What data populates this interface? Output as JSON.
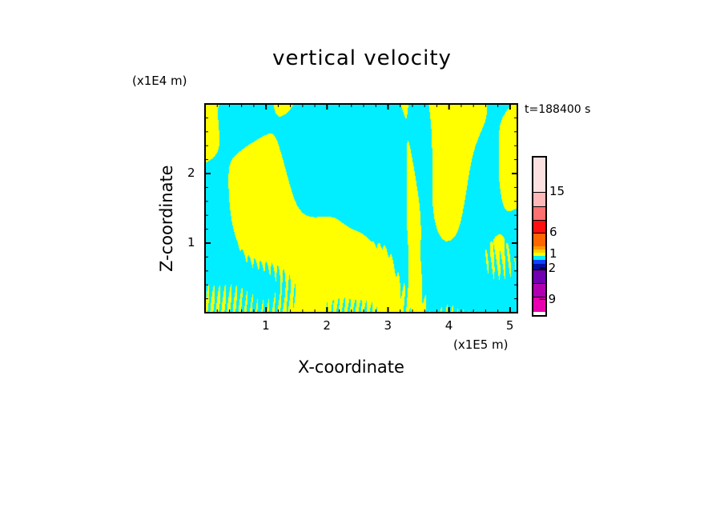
{
  "chart_data": {
    "type": "heatmap",
    "title": "vertical velocity",
    "xlabel": "X-coordinate",
    "ylabel": "Z-coordinate",
    "x_unit": "(x1E5 m)",
    "y_unit": "(x1E4 m)",
    "annotation": "t=188400 s",
    "xlim": [
      0,
      5.12
    ],
    "ylim": [
      0,
      3.0
    ],
    "x_ticks": [
      "1",
      "2",
      "3",
      "4",
      "5"
    ],
    "x_tick_values": [
      1,
      2,
      3,
      4,
      5
    ],
    "y_ticks": [
      "1",
      "2"
    ],
    "y_tick_values": [
      1,
      2
    ],
    "colorbar": {
      "labels": [
        "15",
        "6",
        "1",
        "−2",
        "−9"
      ],
      "colors": [
        "#fde0e0",
        "#ffb8b8",
        "#ff7070",
        "#ff1010",
        "#ff6600",
        "#ff9900",
        "#ffcc00",
        "#ffff00",
        "#00eeff",
        "#1040ff",
        "#0010a0",
        "#7000b0",
        "#b000b0",
        "#e800b0"
      ]
    },
    "dominant_colors": {
      "positive": "#ffff00",
      "negative": "#00eeff"
    }
  }
}
